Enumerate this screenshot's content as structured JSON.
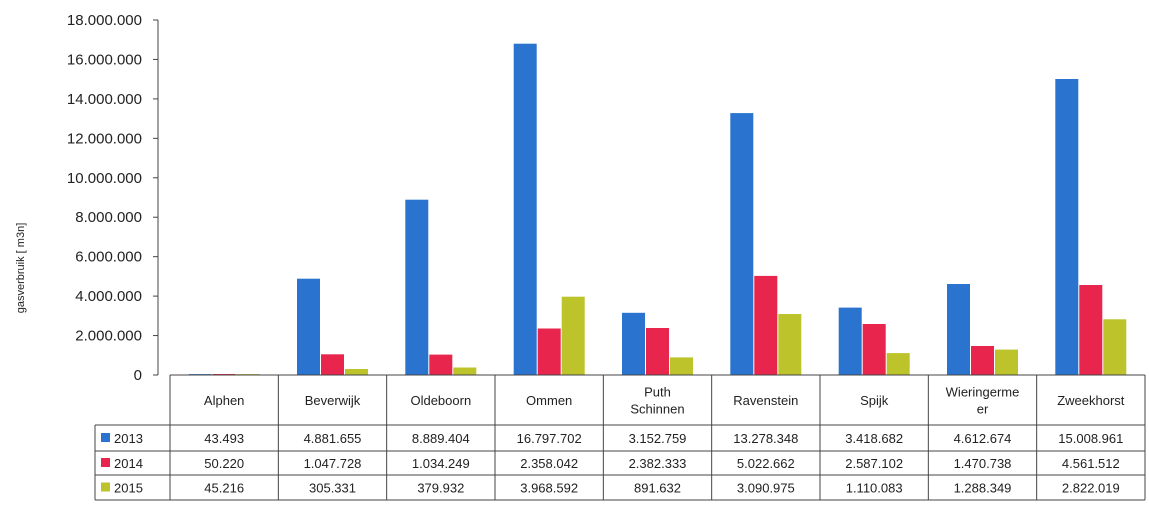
{
  "chart_data": {
    "type": "bar",
    "ylabel": "gasverbruik [ m3n]",
    "ylim": [
      0,
      18000000
    ],
    "yticks": [
      "0",
      "2.000.000",
      "4.000.000",
      "6.000.000",
      "8.000.000",
      "10.000.000",
      "12.000.000",
      "14.000.000",
      "16.000.000",
      "18.000.000"
    ],
    "categories": [
      [
        "Alphen"
      ],
      [
        "Beverwijk"
      ],
      [
        "Oldeboorn"
      ],
      [
        "Ommen"
      ],
      [
        "Puth",
        "Schinnen"
      ],
      [
        "Ravenstein"
      ],
      [
        "Spijk"
      ],
      [
        "Wieringerme",
        "er"
      ],
      [
        "Zweekhorst"
      ]
    ],
    "legend": "data-table",
    "grid": false,
    "series": [
      {
        "name": "2013",
        "color": "#2a74d0",
        "values": [
          43493,
          4881655,
          8889404,
          16797702,
          3152759,
          13278348,
          3418682,
          4612674,
          15008961
        ],
        "labels": [
          "43.493",
          "4.881.655",
          "8.889.404",
          "16.797.702",
          "3.152.759",
          "13.278.348",
          "3.418.682",
          "4.612.674",
          "15.008.961"
        ]
      },
      {
        "name": "2014",
        "color": "#e8254d",
        "values": [
          50220,
          1047728,
          1034249,
          2358042,
          2382333,
          5022662,
          2587102,
          1470738,
          4561512
        ],
        "labels": [
          "50.220",
          "1.047.728",
          "1.034.249",
          "2.358.042",
          "2.382.333",
          "5.022.662",
          "2.587.102",
          "1.470.738",
          "4.561.512"
        ]
      },
      {
        "name": "2015",
        "color": "#bcc32b",
        "values": [
          45216,
          305331,
          379932,
          3968592,
          891632,
          3090975,
          1110083,
          1288349,
          2822019
        ],
        "labels": [
          "45.216",
          "305.331",
          "379.932",
          "3.968.592",
          "891.632",
          "3.090.975",
          "1.110.083",
          "1.288.349",
          "2.822.019"
        ]
      }
    ]
  }
}
